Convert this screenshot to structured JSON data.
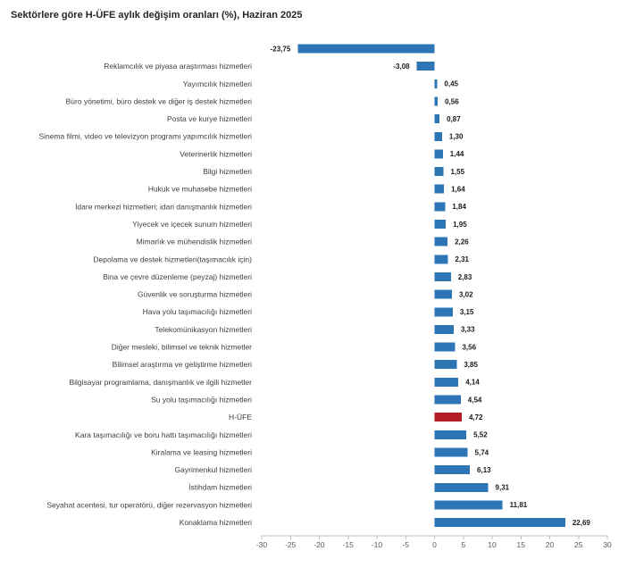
{
  "chart_data": {
    "type": "bar",
    "orientation": "horizontal",
    "title": "Sektörlere göre H-ÜFE aylık değişim oranları (%), Haziran 2025",
    "categories": [
      "",
      "Reklamcılık ve piyasa araştırması hizmetleri",
      "Yayımcılık hizmetleri",
      "Büro yönetimi, büro destek ve diğer iş destek hizmetleri",
      "Posta ve kurye hizmetleri",
      "Sinema filmi, video ve televizyon programı yapımcılık hizmetleri",
      "Veterinerlik hizmetleri",
      "Bilgi hizmetleri",
      "Hukuk ve muhasebe hizmetleri",
      "İdare merkezi hizmetleri; idari danışmanlık hizmetleri",
      "Yiyecek ve içecek sunum hizmetleri",
      "Mimarlık ve mühendislik hizmetleri",
      "Depolama ve destek hizmetleri(taşımacılık için)",
      "Bina ve çevre düzenleme (peyzaj) hizmetleri",
      "Güvenlik ve soruşturma hizmetleri",
      "Hava yolu taşımacılığı hizmetleri",
      "Telekomünikasyon hizmetleri",
      "Diğer mesleki, bilimsel ve teknik hizmetler",
      "Bilimsel araştırma ve geliştirme hizmetleri",
      "Bilgisayar programlama, danışmanlık ve ilgili hizmetler",
      "Su yolu taşımacılığı hizmetleri",
      "H-ÜFE",
      "Kara taşımacılığı ve boru hattı taşımacılığı hizmetleri",
      "Kiralama ve leasing hizmetleri",
      "Gayrimenkul hizmetleri",
      "İstihdam hizmetleri",
      "Seyahat acentesi, tur operatörü, diğer rezervasyon hizmetleri",
      "Konaklama hizmetleri"
    ],
    "values": [
      -23.75,
      -3.08,
      0.45,
      0.56,
      0.87,
      1.3,
      1.44,
      1.55,
      1.64,
      1.84,
      1.95,
      2.26,
      2.31,
      2.83,
      3.02,
      3.15,
      3.33,
      3.56,
      3.85,
      4.14,
      4.54,
      4.72,
      5.52,
      5.74,
      6.13,
      9.31,
      11.81,
      22.69
    ],
    "value_labels": [
      "-23,75",
      "-3,08",
      "0,45",
      "0,56",
      "0,87",
      "1,30",
      "1,44",
      "1,55",
      "1,64",
      "1,84",
      "1,95",
      "2,26",
      "2,31",
      "2,83",
      "3,02",
      "3,15",
      "3,33",
      "3,56",
      "3,85",
      "4,14",
      "4,54",
      "4,72",
      "5,52",
      "5,74",
      "6,13",
      "9,31",
      "11,81",
      "22,69"
    ],
    "highlight_index": 21,
    "colors": {
      "bar": "#2E75B6",
      "highlight_bar": "#B11E23",
      "axis": "#BFBFBF"
    },
    "xlim": [
      -30,
      30
    ],
    "xticks": [
      -30,
      -25,
      -20,
      -15,
      -10,
      -5,
      0,
      5,
      10,
      15,
      20,
      25,
      30
    ],
    "xtick_labels": [
      "-30",
      "-25",
      "-20",
      "-15",
      "-10",
      "-5",
      "0",
      "5",
      "10",
      "15",
      "20",
      "25",
      "30"
    ],
    "grid": false,
    "legend": "none"
  }
}
